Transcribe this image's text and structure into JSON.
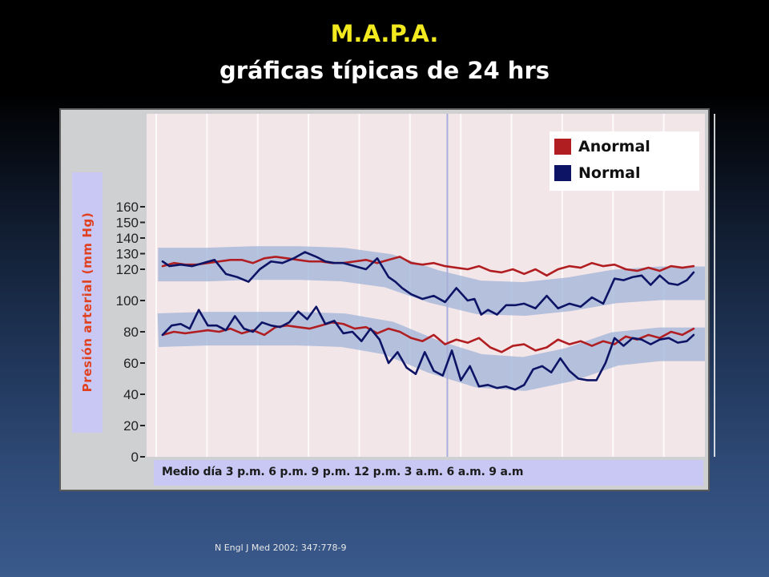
{
  "slide": {
    "title": "M.A.P.A.",
    "subtitle": "gráficas   típicas de 24 hrs",
    "citation": "N Engl J Med 2002; 347:778-9"
  },
  "colors": {
    "title": "#f2ea1f",
    "anormal": "#b11e22",
    "normal": "#0d1466",
    "band": "#9fb3d8",
    "label_red": "#e0401f"
  },
  "chart_data": {
    "type": "line",
    "ylabel": "Presión arterial (mm Hg)",
    "xlabel": "Medio día  3 p.m.  6 p.m.  9 p.m.  12 p.m.   3 a.m.  6 a.m.  9 a.m",
    "ylim": [
      0,
      170
    ],
    "xlim": [
      0,
      24
    ],
    "yticks": [
      0,
      20,
      40,
      60,
      80,
      100,
      120,
      130,
      140,
      150,
      160
    ],
    "ytick_labels": [
      "0",
      "20",
      "40",
      "60",
      "80",
      "100",
      "120",
      "130",
      "140",
      "150",
      "160"
    ],
    "grid": true,
    "legend": {
      "position": "top-right",
      "entries": [
        {
          "name": "Anormal",
          "color": "#b11e22"
        },
        {
          "name": "Normal",
          "color": "#0d1466"
        }
      ]
    },
    "bands": [
      {
        "name": "systolic-range",
        "x": [
          -0.2,
          2,
          4,
          6,
          8,
          10,
          12,
          14,
          16,
          18,
          20,
          22,
          24
        ],
        "y": [
          123,
          123,
          124,
          124,
          123,
          119,
          109,
          102,
          101,
          104,
          109,
          111,
          111
        ]
      },
      {
        "name": "diastolic-range",
        "x": [
          -0.2,
          2,
          4,
          6,
          8,
          10,
          12,
          14,
          16,
          18,
          20,
          22,
          24
        ],
        "y": [
          81,
          82,
          82,
          82,
          81,
          76,
          64,
          55,
          53,
          59,
          69,
          72,
          72
        ]
      }
    ],
    "series": [
      {
        "name": "Anormal",
        "group": "systolic",
        "x": [
          0,
          0.5,
          1,
          1.5,
          2,
          2.5,
          3,
          3.5,
          4,
          4.5,
          5,
          5.5,
          6,
          6.5,
          7,
          7.5,
          8,
          8.5,
          9,
          9.5,
          10,
          10.5,
          11,
          11.5,
          12,
          12.5,
          13,
          13.5,
          14,
          14.5,
          15,
          15.5,
          16,
          16.5,
          17,
          17.5,
          18,
          18.5,
          19,
          19.5,
          20,
          20.5,
          21,
          21.5,
          22,
          22.5,
          23,
          23.5
        ],
        "y": [
          122,
          124,
          123,
          123,
          124,
          125,
          126,
          126,
          124,
          127,
          128,
          127,
          126,
          125,
          125,
          124,
          124,
          125,
          126,
          124,
          126,
          128,
          124,
          123,
          124,
          122,
          121,
          120,
          122,
          119,
          118,
          120,
          117,
          120,
          116,
          120,
          122,
          121,
          124,
          122,
          123,
          120,
          119,
          121,
          119,
          122,
          121,
          122
        ]
      },
      {
        "name": "Normal",
        "group": "systolic",
        "x": [
          0,
          0.3,
          0.8,
          1.3,
          1.8,
          2.3,
          2.8,
          3.3,
          3.8,
          4.3,
          4.8,
          5.3,
          5.8,
          6.3,
          6.8,
          7.2,
          7.6,
          8,
          8.5,
          9,
          9.5,
          10,
          10.3,
          10.6,
          11,
          11.5,
          12,
          12.5,
          13,
          13.5,
          13.8,
          14.1,
          14.4,
          14.8,
          15.2,
          15.6,
          16,
          16.5,
          17,
          17.5,
          18,
          18.5,
          19,
          19.5,
          20,
          20.4,
          20.8,
          21.2,
          21.6,
          22,
          22.4,
          22.8,
          23.2,
          23.5
        ],
        "y": [
          125,
          122,
          123,
          122,
          124,
          126,
          117,
          115,
          112,
          120,
          125,
          124,
          127,
          131,
          128,
          125,
          124,
          124,
          122,
          120,
          127,
          115,
          112,
          108,
          104,
          101,
          103,
          99,
          108,
          100,
          101,
          91,
          94,
          91,
          97,
          97,
          98,
          95,
          103,
          95,
          98,
          96,
          102,
          98,
          114,
          113,
          115,
          116,
          110,
          116,
          111,
          110,
          113,
          118
        ]
      },
      {
        "name": "Anormal",
        "group": "diastolic",
        "x": [
          0,
          0.5,
          1,
          1.5,
          2,
          2.5,
          3,
          3.5,
          4,
          4.5,
          5,
          5.5,
          6,
          6.5,
          7,
          7.5,
          8,
          8.5,
          9,
          9.5,
          10,
          10.5,
          11,
          11.5,
          12,
          12.5,
          13,
          13.5,
          14,
          14.5,
          15,
          15.5,
          16,
          16.5,
          17,
          17.5,
          18,
          18.5,
          19,
          19.5,
          20,
          20.5,
          21,
          21.5,
          22,
          22.5,
          23,
          23.5
        ],
        "y": [
          78,
          80,
          79,
          80,
          81,
          80,
          82,
          79,
          81,
          78,
          83,
          84,
          83,
          82,
          84,
          86,
          85,
          82,
          83,
          79,
          82,
          80,
          76,
          74,
          78,
          72,
          75,
          73,
          76,
          70,
          67,
          71,
          72,
          68,
          70,
          75,
          72,
          74,
          71,
          74,
          72,
          77,
          75,
          78,
          76,
          80,
          78,
          82
        ]
      },
      {
        "name": "Normal",
        "group": "diastolic",
        "x": [
          0,
          0.4,
          0.8,
          1.2,
          1.6,
          2,
          2.4,
          2.8,
          3.2,
          3.6,
          4,
          4.4,
          4.8,
          5.2,
          5.6,
          6,
          6.4,
          6.8,
          7.2,
          7.6,
          8,
          8.4,
          8.8,
          9.2,
          9.6,
          10,
          10.4,
          10.8,
          11.2,
          11.6,
          12,
          12.4,
          12.8,
          13.2,
          13.6,
          14,
          14.4,
          14.8,
          15.2,
          15.6,
          16,
          16.4,
          16.8,
          17.2,
          17.6,
          18,
          18.4,
          18.8,
          19.2,
          19.6,
          20,
          20.4,
          20.8,
          21.2,
          21.6,
          22,
          22.4,
          22.8,
          23.2,
          23.5
        ],
        "y": [
          78,
          84,
          85,
          82,
          94,
          84,
          84,
          81,
          90,
          82,
          80,
          86,
          84,
          83,
          86,
          93,
          88,
          96,
          85,
          87,
          79,
          80,
          74,
          82,
          75,
          60,
          67,
          57,
          53,
          67,
          55,
          52,
          68,
          49,
          58,
          45,
          46,
          44,
          45,
          43,
          46,
          56,
          58,
          54,
          63,
          55,
          50,
          49,
          49,
          60,
          76,
          71,
          76,
          75,
          72,
          75,
          76,
          73,
          74,
          78
        ]
      }
    ]
  }
}
